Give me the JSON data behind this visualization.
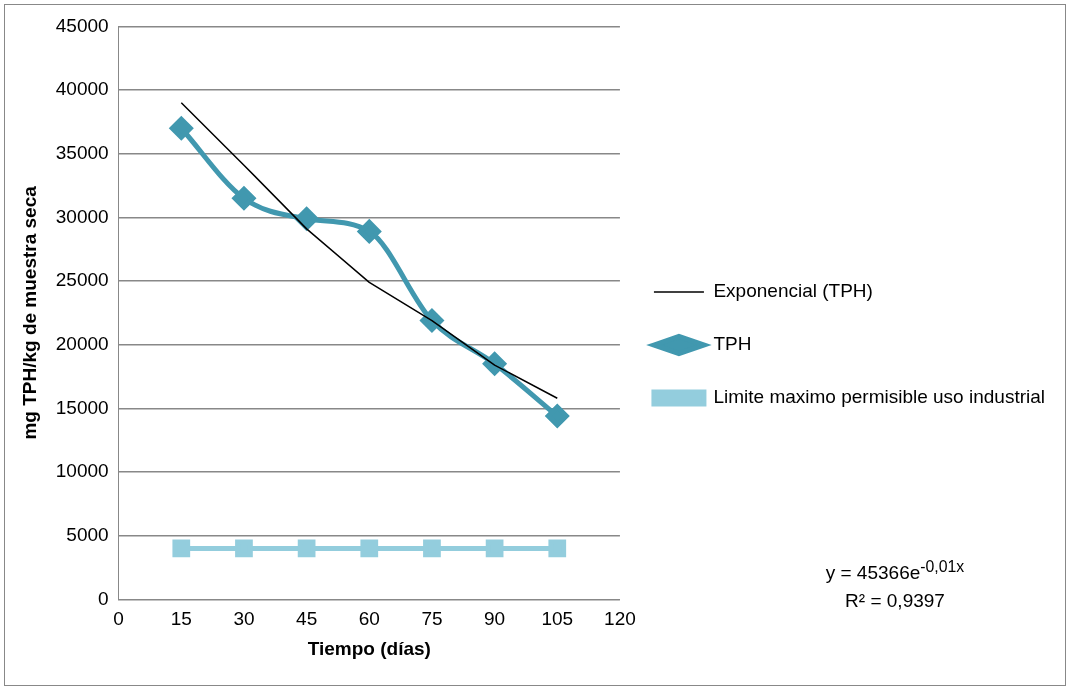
{
  "chart_data": {
    "type": "line",
    "xlabel": "Tiempo (días)",
    "ylabel": "mg TPH/kg de muestra seca",
    "x": [
      15,
      30,
      45,
      60,
      75,
      90,
      105
    ],
    "series": [
      {
        "name": "TPH",
        "color": "#4198af",
        "marker": "diamond",
        "values": [
          37000,
          31500,
          29900,
          28900,
          21900,
          18500,
          14400
        ]
      },
      {
        "name": "Limite maximo permisible uso industrial",
        "color": "#93cddd",
        "marker": "square",
        "values": [
          4000,
          4000,
          4000,
          4000,
          4000,
          4000,
          4000
        ]
      },
      {
        "name": "Exponencial (TPH)",
        "type": "line",
        "color": "#000000",
        "marker": "none",
        "x": [
          15,
          30,
          45,
          60,
          75,
          90,
          105
        ],
        "values": [
          39000,
          34100,
          29100,
          24900,
          21900,
          18400,
          15800
        ]
      }
    ],
    "xlim": [
      0,
      120
    ],
    "xticks": [
      0,
      15,
      30,
      45,
      60,
      75,
      90,
      105,
      120
    ],
    "ylim": [
      0,
      45000
    ],
    "yticks": [
      0,
      5000,
      10000,
      15000,
      20000,
      25000,
      30000,
      35000,
      40000,
      45000
    ],
    "grid": "y",
    "legend": "right",
    "annotations": [
      "y = 45366e$^{-0,01x}$",
      "R² = 0,9397"
    ]
  }
}
